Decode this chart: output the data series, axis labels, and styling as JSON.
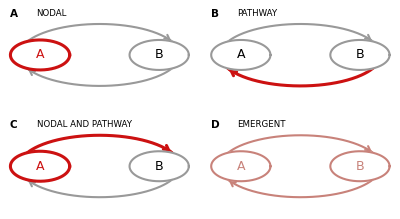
{
  "gray": "#999999",
  "red": "#cc1111",
  "salmon": "#c8827a",
  "bg": "#ffffff",
  "lw_gray": 1.5,
  "lw_red": 2.2,
  "panels": [
    {
      "label": "A",
      "title": "NODAL",
      "node_A_red": true,
      "path_top_red": false,
      "path_bot_red": false,
      "emergent": false
    },
    {
      "label": "B",
      "title": "PATHWAY",
      "node_A_red": false,
      "path_top_red": false,
      "path_bot_red": true,
      "emergent": false
    },
    {
      "label": "C",
      "title": "NODAL AND PATHWAY",
      "node_A_red": true,
      "path_top_red": true,
      "path_bot_red": false,
      "emergent": false
    },
    {
      "label": "D",
      "title": "EMERGENT",
      "node_A_red": false,
      "path_top_red": false,
      "path_bot_red": false,
      "emergent": true
    }
  ]
}
